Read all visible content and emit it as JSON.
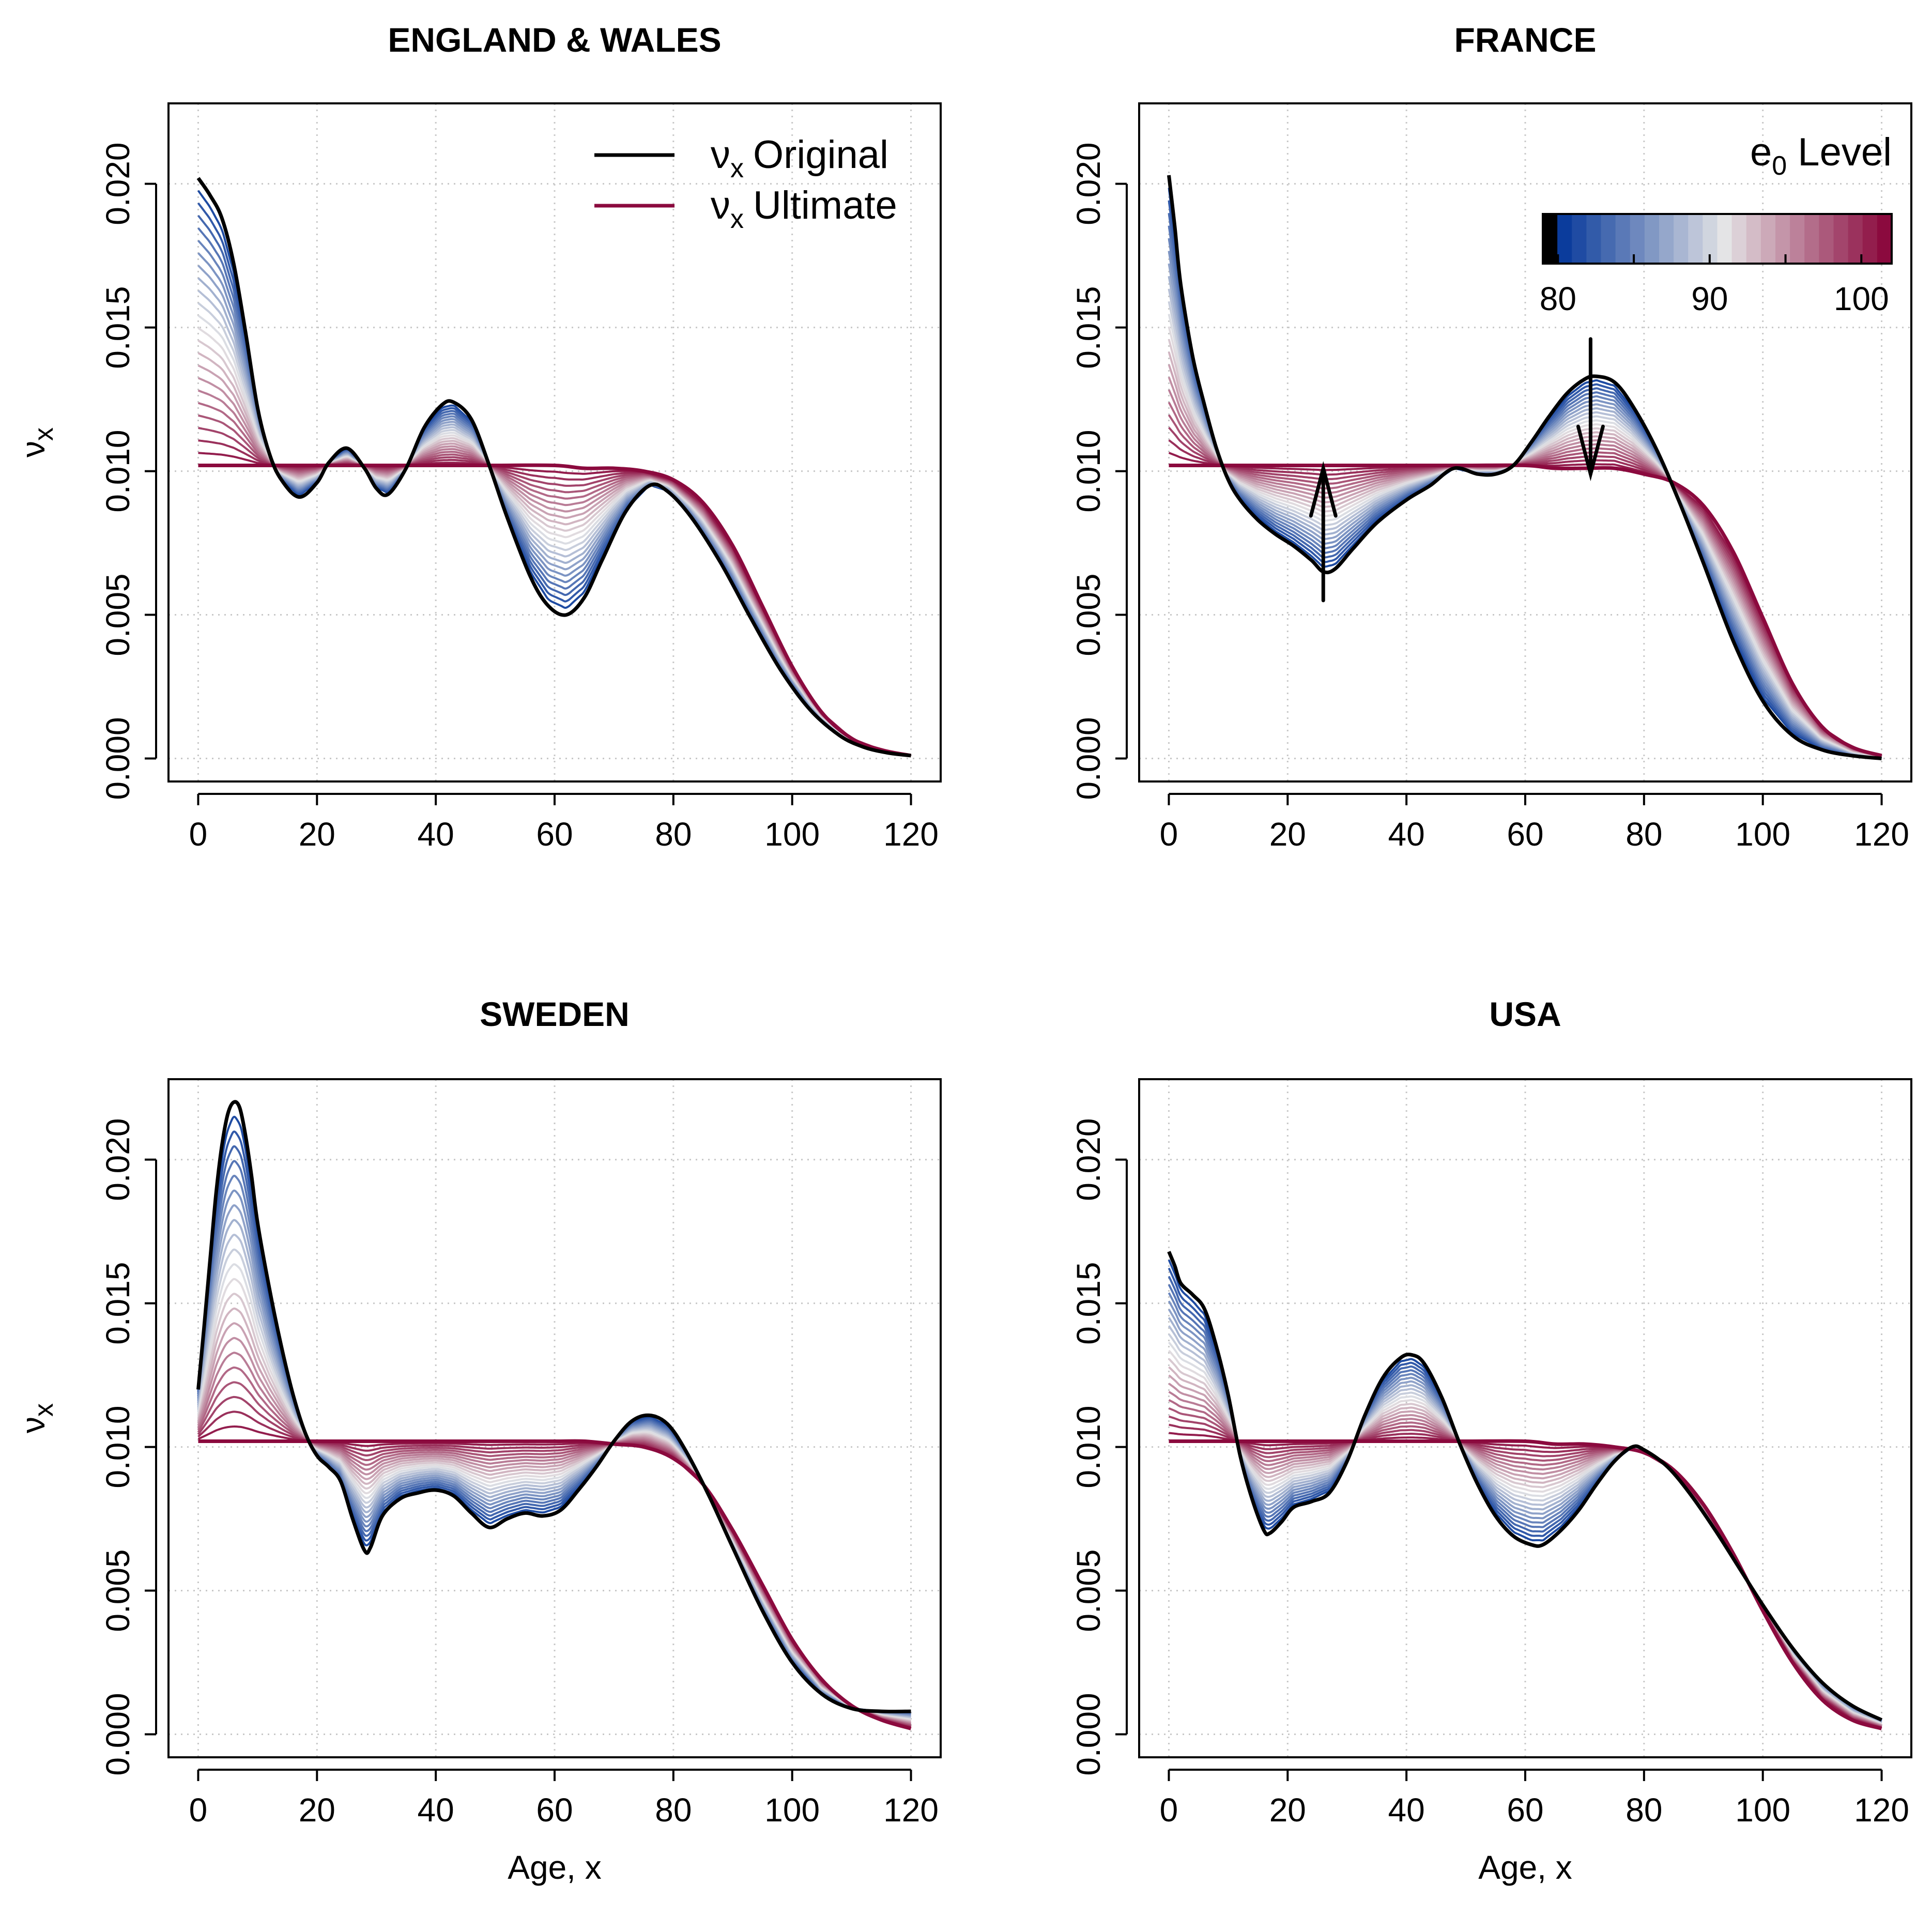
{
  "chart_data": [
    {
      "type": "line",
      "title": "ENGLAND & WALES",
      "xlabel": "",
      "ylabel": "νx",
      "xlim": [
        -5,
        125
      ],
      "ylim": [
        -0.0008,
        0.0228
      ],
      "x_ticks": [
        0,
        20,
        40,
        60,
        80,
        100,
        120
      ],
      "y_ticks": [
        "0.000",
        "0.005",
        "0.010",
        "0.015",
        "0.020"
      ],
      "grid": true,
      "legend": {
        "position": "top-right",
        "entries": [
          {
            "symbol": "ν",
            "sub": "x",
            "text": "Original",
            "color": "#000000"
          },
          {
            "symbol": "ν",
            "sub": "x",
            "text": "Ultimate",
            "color": "#8B0A3E"
          }
        ]
      },
      "series": [
        {
          "name": "νx Original",
          "color": "#000000",
          "x": [
            0,
            2,
            4,
            6,
            8,
            10,
            12,
            14,
            17,
            20,
            22,
            25,
            28,
            30,
            32,
            35,
            38,
            41,
            43,
            46,
            49,
            52,
            56,
            59,
            62,
            65,
            68,
            72,
            76,
            79,
            83,
            88,
            93,
            98,
            103,
            108,
            112,
            116,
            120
          ],
          "y": [
            0.0202,
            0.0196,
            0.0188,
            0.0172,
            0.0148,
            0.0122,
            0.0106,
            0.0097,
            0.0091,
            0.0096,
            0.0103,
            0.0108,
            0.0101,
            0.0094,
            0.0092,
            0.0101,
            0.0115,
            0.0123,
            0.0124,
            0.0118,
            0.0102,
            0.0084,
            0.0063,
            0.0053,
            0.005,
            0.0056,
            0.0069,
            0.0086,
            0.0095,
            0.0093,
            0.0084,
            0.0068,
            0.0049,
            0.0031,
            0.0017,
            0.0008,
            0.0004,
            0.0002,
            0.0001
          ]
        },
        {
          "name": "νx Ultimate",
          "color": "#8B0A3E",
          "x": [
            0,
            10,
            20,
            30,
            40,
            50,
            60,
            65,
            70,
            75,
            80,
            85,
            90,
            95,
            100,
            105,
            110,
            115,
            120
          ],
          "y": [
            0.0102,
            0.0102,
            0.0102,
            0.0102,
            0.0102,
            0.0102,
            0.0102,
            0.0101,
            0.0101,
            0.01,
            0.0097,
            0.0089,
            0.0074,
            0.0053,
            0.0032,
            0.0016,
            0.0007,
            0.0003,
            0.0001
          ]
        }
      ]
    },
    {
      "type": "line",
      "title": "FRANCE",
      "xlabel": "",
      "ylabel": "",
      "xlim": [
        -5,
        125
      ],
      "ylim": [
        -0.0008,
        0.0228
      ],
      "x_ticks": [
        0,
        20,
        40,
        60,
        80,
        100,
        120
      ],
      "y_ticks": [
        "0.000",
        "0.005",
        "0.010",
        "0.015",
        "0.020"
      ],
      "grid": true,
      "colorbar": {
        "title": "e",
        "title_sub": "0",
        "title_rest": " Level",
        "ticks": [
          "80",
          "90",
          "100"
        ],
        "range": [
          79,
          102
        ]
      },
      "arrows": [
        {
          "x": 26,
          "from": 0.0055,
          "to": 0.0101
        },
        {
          "x": 71,
          "from": 0.0146,
          "to": 0.0099
        }
      ],
      "series": [
        {
          "name": "νx Original",
          "color": "#000000",
          "x": [
            0,
            1,
            2,
            4,
            6,
            8,
            10,
            12,
            15,
            18,
            21,
            24,
            26,
            28,
            31,
            35,
            40,
            44,
            48,
            52,
            55,
            58,
            61,
            64,
            67,
            70,
            72,
            75,
            78,
            82,
            86,
            90,
            95,
            100,
            105,
            110,
            115,
            120
          ],
          "y": [
            0.0203,
            0.0185,
            0.0165,
            0.014,
            0.0123,
            0.0108,
            0.0097,
            0.009,
            0.0083,
            0.0078,
            0.0074,
            0.0069,
            0.0065,
            0.0066,
            0.0073,
            0.0082,
            0.009,
            0.0095,
            0.0101,
            0.0099,
            0.0099,
            0.0102,
            0.011,
            0.0119,
            0.0127,
            0.0132,
            0.0133,
            0.0131,
            0.0123,
            0.0108,
            0.0089,
            0.0068,
            0.0041,
            0.002,
            0.0008,
            0.0003,
            0.0001,
            0.0
          ]
        },
        {
          "name": "νx Ultimate",
          "color": "#8B0A3E",
          "x": [
            0,
            10,
            20,
            30,
            40,
            50,
            60,
            65,
            70,
            75,
            80,
            85,
            90,
            95,
            100,
            105,
            110,
            115,
            120
          ],
          "y": [
            0.0102,
            0.0102,
            0.0102,
            0.0102,
            0.0102,
            0.0102,
            0.0102,
            0.0101,
            0.0101,
            0.0101,
            0.0099,
            0.0096,
            0.0088,
            0.0072,
            0.0049,
            0.0026,
            0.0011,
            0.0004,
            0.0001
          ]
        }
      ]
    },
    {
      "type": "line",
      "title": "SWEDEN",
      "xlabel": "Age, x",
      "ylabel": "νx",
      "xlim": [
        -5,
        125
      ],
      "ylim": [
        -0.0008,
        0.0228
      ],
      "x_ticks": [
        0,
        20,
        40,
        60,
        80,
        100,
        120
      ],
      "y_ticks": [
        "0.000",
        "0.005",
        "0.010",
        "0.015",
        "0.020"
      ],
      "grid": true,
      "series": [
        {
          "name": "νx Original",
          "color": "#000000",
          "x": [
            0,
            1,
            2,
            3,
            4,
            5,
            6,
            7,
            8,
            9,
            10,
            12,
            14,
            16,
            18,
            20,
            22,
            24,
            26,
            28,
            29,
            31,
            34,
            37,
            40,
            43,
            46,
            49,
            52,
            55,
            58,
            61,
            64,
            67,
            70,
            73,
            76,
            79,
            82,
            86,
            90,
            95,
            100,
            105,
            110,
            115,
            120
          ],
          "y": [
            0.012,
            0.0142,
            0.0165,
            0.0188,
            0.0205,
            0.0216,
            0.022,
            0.0218,
            0.0208,
            0.0194,
            0.0178,
            0.0155,
            0.0135,
            0.0118,
            0.0105,
            0.0097,
            0.0093,
            0.0088,
            0.0075,
            0.0064,
            0.0065,
            0.0076,
            0.0082,
            0.0084,
            0.0085,
            0.0083,
            0.0077,
            0.0072,
            0.0075,
            0.0077,
            0.0076,
            0.0078,
            0.0085,
            0.0093,
            0.0102,
            0.0109,
            0.0111,
            0.0108,
            0.0099,
            0.0083,
            0.0065,
            0.0043,
            0.0025,
            0.0014,
            0.0009,
            0.0008,
            0.0008
          ]
        },
        {
          "name": "νx Ultimate",
          "color": "#8B0A3E",
          "x": [
            0,
            10,
            20,
            30,
            40,
            50,
            60,
            65,
            70,
            75,
            80,
            85,
            90,
            95,
            100,
            105,
            110,
            115,
            120
          ],
          "y": [
            0.0102,
            0.0102,
            0.0102,
            0.0102,
            0.0102,
            0.0102,
            0.0102,
            0.0102,
            0.0101,
            0.01,
            0.0096,
            0.0087,
            0.0071,
            0.0052,
            0.0033,
            0.0019,
            0.001,
            0.0005,
            0.0002
          ]
        }
      ]
    },
    {
      "type": "line",
      "title": "USA",
      "xlabel": "Age, x",
      "ylabel": "",
      "xlim": [
        -5,
        125
      ],
      "ylim": [
        -0.0008,
        0.0228
      ],
      "x_ticks": [
        0,
        20,
        40,
        60,
        80,
        100,
        120
      ],
      "y_ticks": [
        "0.000",
        "0.005",
        "0.010",
        "0.015",
        "0.020"
      ],
      "grid": true,
      "series": [
        {
          "name": "νx Original",
          "color": "#000000",
          "x": [
            0,
            1,
            2,
            4,
            6,
            8,
            10,
            12,
            14,
            16,
            17,
            19,
            21,
            24,
            27,
            30,
            33,
            36,
            39,
            41,
            43,
            46,
            49,
            52,
            55,
            58,
            61,
            63,
            66,
            69,
            72,
            75,
            78,
            80,
            84,
            88,
            92,
            96,
            100,
            105,
            110,
            115,
            120
          ],
          "y": [
            0.0168,
            0.0163,
            0.0157,
            0.0153,
            0.0148,
            0.0135,
            0.0118,
            0.0097,
            0.0082,
            0.0071,
            0.007,
            0.0074,
            0.0079,
            0.0081,
            0.0084,
            0.0095,
            0.0111,
            0.0124,
            0.0131,
            0.0132,
            0.0129,
            0.0117,
            0.0101,
            0.0087,
            0.0076,
            0.0069,
            0.0066,
            0.0066,
            0.0071,
            0.0078,
            0.0087,
            0.0095,
            0.01,
            0.0099,
            0.0093,
            0.0083,
            0.0071,
            0.0058,
            0.0045,
            0.003,
            0.0018,
            0.001,
            0.0005
          ]
        },
        {
          "name": "νx Ultimate",
          "color": "#8B0A3E",
          "x": [
            0,
            10,
            20,
            30,
            40,
            50,
            60,
            65,
            70,
            75,
            80,
            85,
            90,
            95,
            100,
            105,
            110,
            115,
            120
          ],
          "y": [
            0.0102,
            0.0102,
            0.0102,
            0.0102,
            0.0102,
            0.0102,
            0.0102,
            0.0101,
            0.0101,
            0.01,
            0.0098,
            0.0092,
            0.008,
            0.0063,
            0.0043,
            0.0025,
            0.0012,
            0.0005,
            0.0002
          ]
        }
      ]
    }
  ],
  "colors": {
    "original": "#000000",
    "ultimate": "#8B0A3E",
    "gradient_start": "#0B3C9C",
    "gradient_mid": "#E4E4E6",
    "gradient_end": "#8B0A3E",
    "grid": "#C8C8C8"
  },
  "n_transition_curves": 22
}
